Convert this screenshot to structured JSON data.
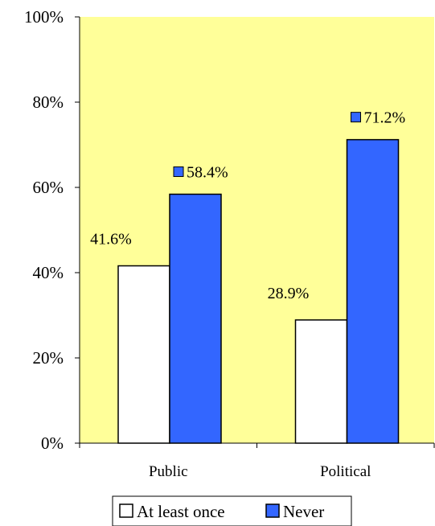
{
  "chart_data": {
    "type": "bar",
    "categories": [
      "Public",
      "Political"
    ],
    "series": [
      {
        "name": "At least once",
        "values": [
          41.6,
          28.9
        ],
        "labels": [
          "41.6%",
          "28.9%"
        ],
        "color": "#ffffff"
      },
      {
        "name": "Never",
        "values": [
          58.4,
          71.2
        ],
        "labels": [
          "58.4%",
          "71.2%"
        ],
        "color": "#3366ff"
      }
    ],
    "ylim": [
      0,
      100
    ],
    "yticks": [
      0,
      20,
      40,
      60,
      80,
      100
    ],
    "ytick_labels": [
      "0%",
      "20%",
      "40%",
      "60%",
      "80%",
      "100%"
    ],
    "plot_background": "#ffff99",
    "legend_position": "bottom",
    "grid": false,
    "title": "",
    "xlabel": "",
    "ylabel": ""
  }
}
